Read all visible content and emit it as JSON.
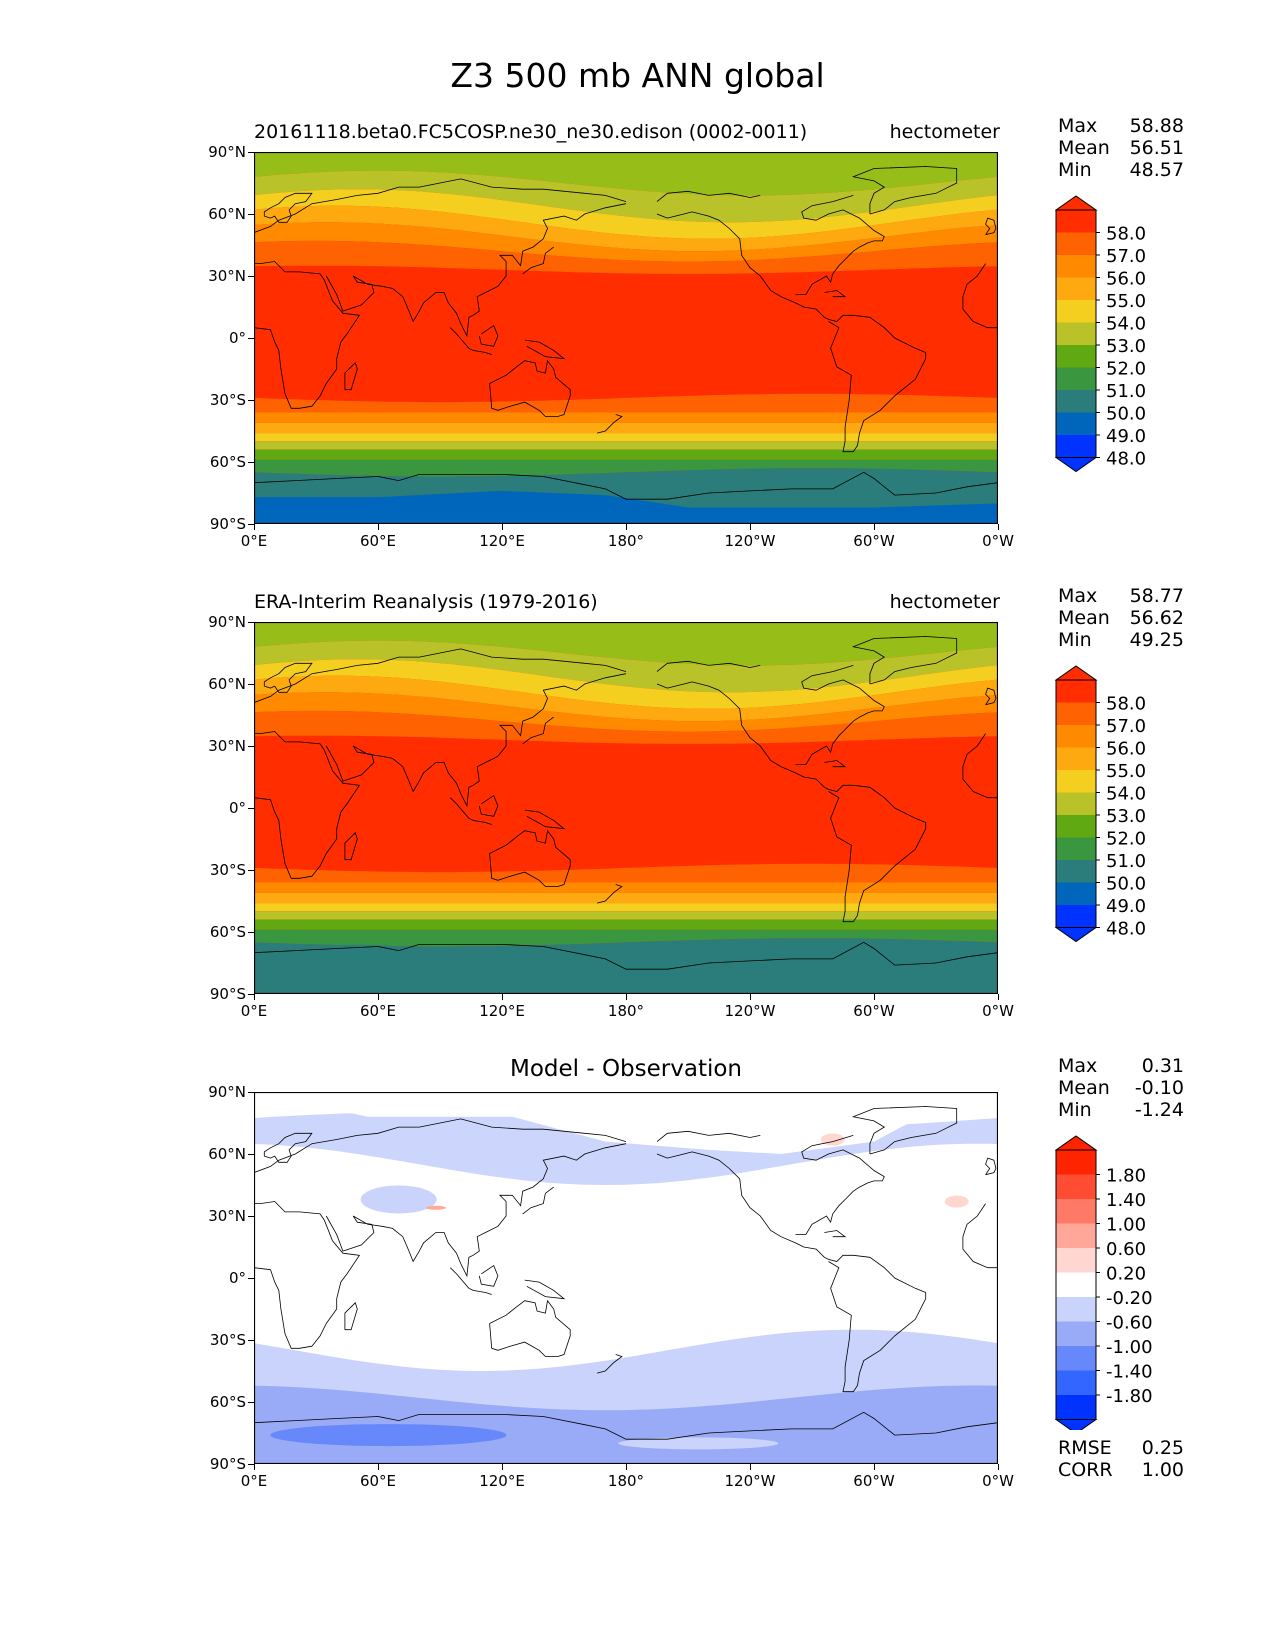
{
  "title": "Z3 500 mb ANN global",
  "x_ticks": [
    "0°E",
    "60°E",
    "120°E",
    "180°",
    "120°W",
    "60°W",
    "0°W"
  ],
  "y_ticks": [
    "90°N",
    "60°N",
    "30°N",
    "0°",
    "30°S",
    "60°S",
    "90°S"
  ],
  "colors": {
    "abs_levels": [
      "#0033ff",
      "#0066bb",
      "#2a7d7a",
      "#3b9640",
      "#60a912",
      "#b9c228",
      "#f5cf20",
      "#fda90f",
      "#ff8a00",
      "#ff6200",
      "#ff2d00"
    ],
    "diff_levels": [
      "#0033ff",
      "#3365ff",
      "#6688fa",
      "#99aaf7",
      "#c9d3fb",
      "#ffffff",
      "#ffd6d0",
      "#ffa899",
      "#ff7a66",
      "#ff4d33",
      "#ff2400"
    ]
  },
  "panels": [
    {
      "title_left": "20161118.beta0.FC5COSP.ne30_ne30.edison (0002-0011)",
      "title_right": "hectometer",
      "title_center": "",
      "stats": {
        "max_label": "Max",
        "max": "58.88",
        "mean_label": "Mean",
        "mean": "56.51",
        "min_label": "Min",
        "min": "48.57"
      },
      "colorbar_labels": [
        "58.0",
        "57.0",
        "56.0",
        "55.0",
        "54.0",
        "53.0",
        "52.0",
        "51.0",
        "50.0",
        "49.0",
        "48.0"
      ],
      "type": "model"
    },
    {
      "title_left": "ERA-Interim Reanalysis (1979-2016)",
      "title_right": "hectometer",
      "title_center": "",
      "stats": {
        "max_label": "Max",
        "max": "58.77",
        "mean_label": "Mean",
        "mean": "56.62",
        "min_label": "Min",
        "min": "49.25"
      },
      "colorbar_labels": [
        "58.0",
        "57.0",
        "56.0",
        "55.0",
        "54.0",
        "53.0",
        "52.0",
        "51.0",
        "50.0",
        "49.0",
        "48.0"
      ],
      "type": "obs"
    },
    {
      "title_left": "",
      "title_right": "",
      "title_center": "Model - Observation",
      "stats": {
        "max_label": "Max",
        "max": "0.31",
        "mean_label": "Mean",
        "mean": "-0.10",
        "min_label": "Min",
        "min": "-1.24"
      },
      "colorbar_labels": [
        "1.80",
        "1.40",
        "1.00",
        "0.60",
        "0.20",
        "-0.20",
        "-0.60",
        "-1.00",
        "-1.40",
        "-1.80"
      ],
      "type": "diff"
    }
  ],
  "error_stats": {
    "rmse_label": "RMSE",
    "rmse": "0.25",
    "corr_label": "CORR",
    "corr": "1.00"
  }
}
